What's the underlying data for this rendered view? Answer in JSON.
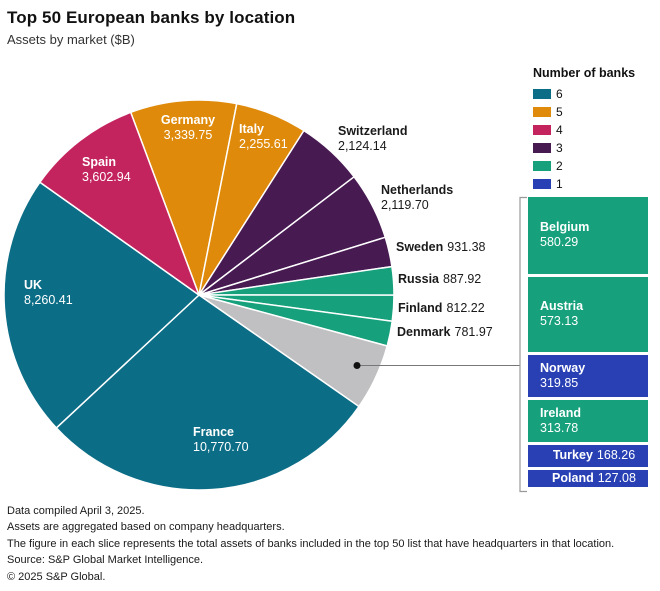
{
  "header": {
    "title": "Top 50 European banks by location",
    "subtitle": "Assets by market ($B)"
  },
  "legend": {
    "title": "Number of banks",
    "items": [
      {
        "label": "6",
        "color": "#0c6d86"
      },
      {
        "label": "5",
        "color": "#df8a0a"
      },
      {
        "label": "4",
        "color": "#c4245e"
      },
      {
        "label": "3",
        "color": "#471a52"
      },
      {
        "label": "2",
        "color": "#16a07c"
      },
      {
        "label": "1",
        "color": "#2840b4"
      }
    ]
  },
  "chart_data": {
    "type": "pie",
    "title": "Top 50 European banks by location",
    "units": "$B",
    "legend_title": "Number of banks",
    "legend_position": "right-top",
    "slices": [
      {
        "name": "Germany",
        "value": 3339.75,
        "value_display": "3,339.75",
        "banks": 5,
        "color": "#df8a0a"
      },
      {
        "name": "Italy",
        "value": 2255.61,
        "value_display": "2,255.61",
        "banks": 5,
        "color": "#df8a0a"
      },
      {
        "name": "Switzerland",
        "value": 2124.14,
        "value_display": "2,124.14",
        "banks": 3,
        "color": "#471a52"
      },
      {
        "name": "Netherlands",
        "value": 2119.7,
        "value_display": "2,119.70",
        "banks": 3,
        "color": "#471a52"
      },
      {
        "name": "Sweden",
        "value": 931.38,
        "value_display": "931.38",
        "banks": 3,
        "color": "#471a52"
      },
      {
        "name": "Russia",
        "value": 887.92,
        "value_display": "887.92",
        "banks": 2,
        "color": "#16a07c"
      },
      {
        "name": "Finland",
        "value": 812.22,
        "value_display": "812.22",
        "banks": 2,
        "color": "#16a07c"
      },
      {
        "name": "Denmark",
        "value": 781.97,
        "value_display": "781.97",
        "banks": 2,
        "color": "#16a07c"
      },
      {
        "name": "Other",
        "value": null,
        "value_display": "",
        "banks": null,
        "color": "#c0c0c2"
      },
      {
        "name": "France",
        "value": 10770.7,
        "value_display": "10,770.70",
        "banks": 6,
        "color": "#0c6d86"
      },
      {
        "name": "UK",
        "value": 8260.41,
        "value_display": "8,260.41",
        "banks": 6,
        "color": "#0c6d86"
      },
      {
        "name": "Spain",
        "value": 3602.94,
        "value_display": "3,602.94",
        "banks": 4,
        "color": "#c4245e"
      }
    ],
    "other_breakdown": [
      {
        "name": "Belgium",
        "value": 580.29,
        "value_display": "580.29",
        "banks": 2,
        "color": "#16a07c"
      },
      {
        "name": "Austria",
        "value": 573.13,
        "value_display": "573.13",
        "banks": 2,
        "color": "#16a07c"
      },
      {
        "name": "Norway",
        "value": 319.85,
        "value_display": "319.85",
        "banks": 1,
        "color": "#2840b4"
      },
      {
        "name": "Ireland",
        "value": 313.78,
        "value_display": "313.78",
        "banks": 2,
        "color": "#16a07c"
      },
      {
        "name": "Turkey",
        "value": 168.26,
        "value_display": "168.26",
        "banks": 1,
        "color": "#2840b4"
      },
      {
        "name": "Poland",
        "value": 127.08,
        "value_display": "127.08",
        "banks": 1,
        "color": "#2840b4"
      }
    ]
  },
  "footnotes": [
    "Data compiled April 3, 2025.",
    "Assets are aggregated based on company headquarters.",
    "The figure in each slice represents the total assets of banks included in the top 50 list that have headquarters in that location.",
    "Source: S&P Global Market Intelligence.",
    "© 2025 S&P Global."
  ]
}
